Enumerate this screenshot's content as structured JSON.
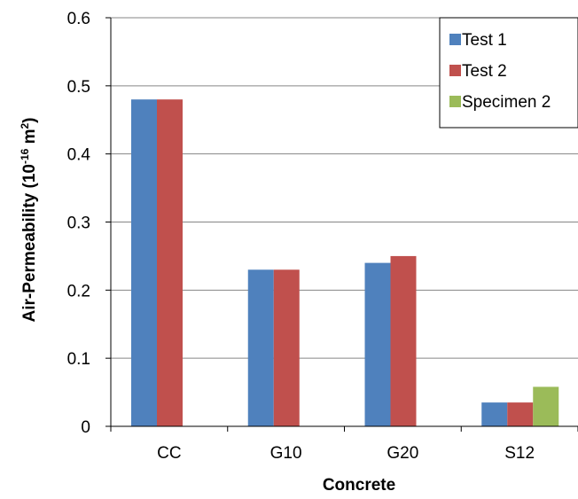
{
  "chart_data": {
    "type": "bar",
    "categories": [
      "CC",
      "G10",
      "G20",
      "S12"
    ],
    "series": [
      {
        "name": "Test 1",
        "color": "#4F81BD",
        "values": [
          0.48,
          0.23,
          0.24,
          0.035
        ]
      },
      {
        "name": "Test 2",
        "color": "#C0504D",
        "values": [
          0.48,
          0.23,
          0.25,
          0.035
        ]
      },
      {
        "name": "Specimen 2",
        "color": "#9BBB59",
        "values": [
          null,
          null,
          null,
          0.058
        ]
      }
    ],
    "xlabel": "Concrete",
    "ylabel": "Air-Permeability (10",
    "ylabel_exp": "-16",
    "ylabel_unit": " m",
    "ylabel_unit_exp": "2",
    "ylabel_close": ")",
    "ylim": [
      0,
      0.6
    ],
    "yticks": [
      "0",
      "0.1",
      "0.2",
      "0.3",
      "0.4",
      "0.5",
      "0.6"
    ],
    "grid": true,
    "legend": "top-right"
  }
}
